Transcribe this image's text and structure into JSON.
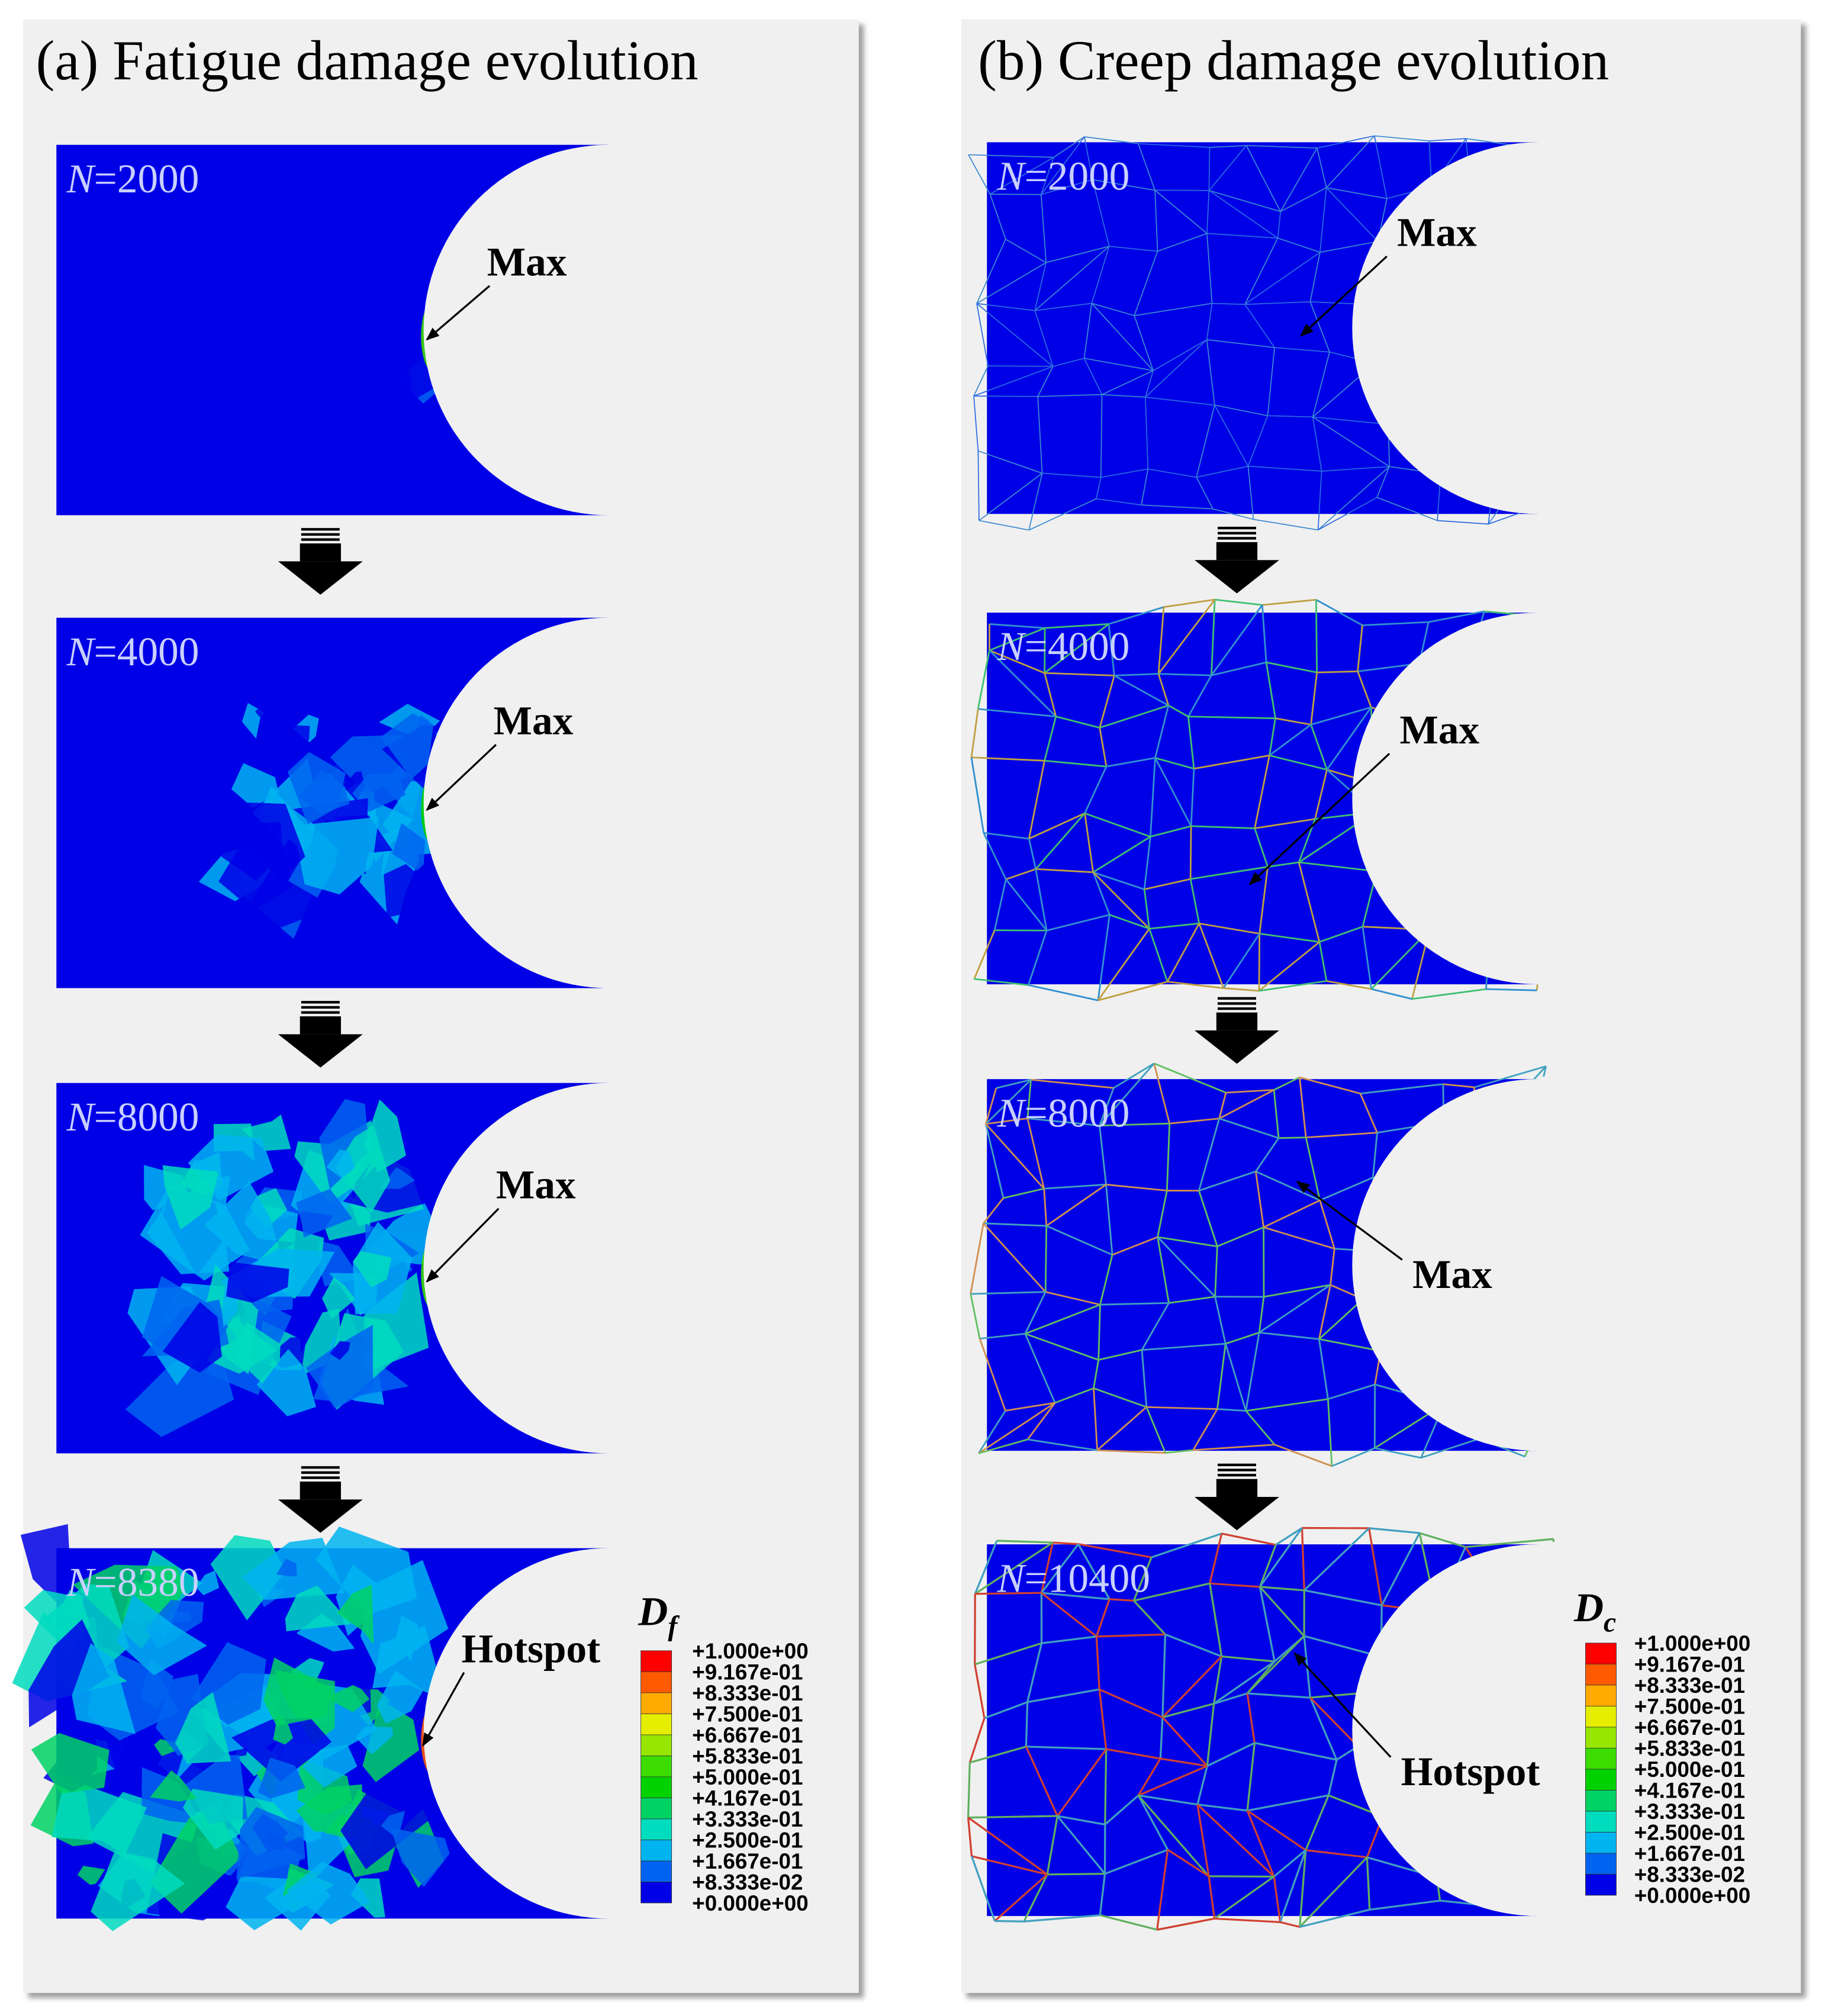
{
  "panels": [
    {
      "title": "(a) Fatigue damage evolution",
      "frames": [
        {
          "symbol": "N",
          "value": "=2000",
          "annotation": "Max"
        },
        {
          "symbol": "N",
          "value": "=4000",
          "annotation": "Max"
        },
        {
          "symbol": "N",
          "value": "=8000",
          "annotation": "Max"
        },
        {
          "symbol": "N",
          "value": "=8380",
          "annotation": "Hotspot"
        }
      ],
      "legend": {
        "symbol": "D",
        "subscript": "f",
        "labels": [
          "+1.000e+00",
          "+9.167e-01",
          "+8.333e-01",
          "+7.500e-01",
          "+6.667e-01",
          "+5.833e-01",
          "+5.000e-01",
          "+4.167e-01",
          "+3.333e-01",
          "+2.500e-01",
          "+1.667e-01",
          "+8.333e-02",
          "+0.000e+00"
        ]
      }
    },
    {
      "title": "(b) Creep damage evolution",
      "frames": [
        {
          "symbol": "N",
          "value": "=2000",
          "annotation": "Max"
        },
        {
          "symbol": "N",
          "value": "=4000",
          "annotation": "Max"
        },
        {
          "symbol": "N",
          "value": "=8000",
          "annotation": "Max"
        },
        {
          "symbol": "N",
          "value": "=10400",
          "annotation": "Hotspot"
        }
      ],
      "legend": {
        "symbol": "D",
        "subscript": "c",
        "labels": [
          "+1.000e+00",
          "+9.167e-01",
          "+8.333e-01",
          "+7.500e-01",
          "+6.667e-01",
          "+5.833e-01",
          "+5.000e-01",
          "+4.167e-01",
          "+3.333e-01",
          "+2.500e-01",
          "+1.667e-01",
          "+8.333e-02",
          "+0.000e+00"
        ]
      }
    }
  ],
  "legend_colors": [
    "#ff0000",
    "#ff5a00",
    "#ffaa00",
    "#e6ee00",
    "#96e600",
    "#3cdc00",
    "#00d200",
    "#00d264",
    "#00dcbe",
    "#00b4f0",
    "#0064f0",
    "#0000e6"
  ]
}
